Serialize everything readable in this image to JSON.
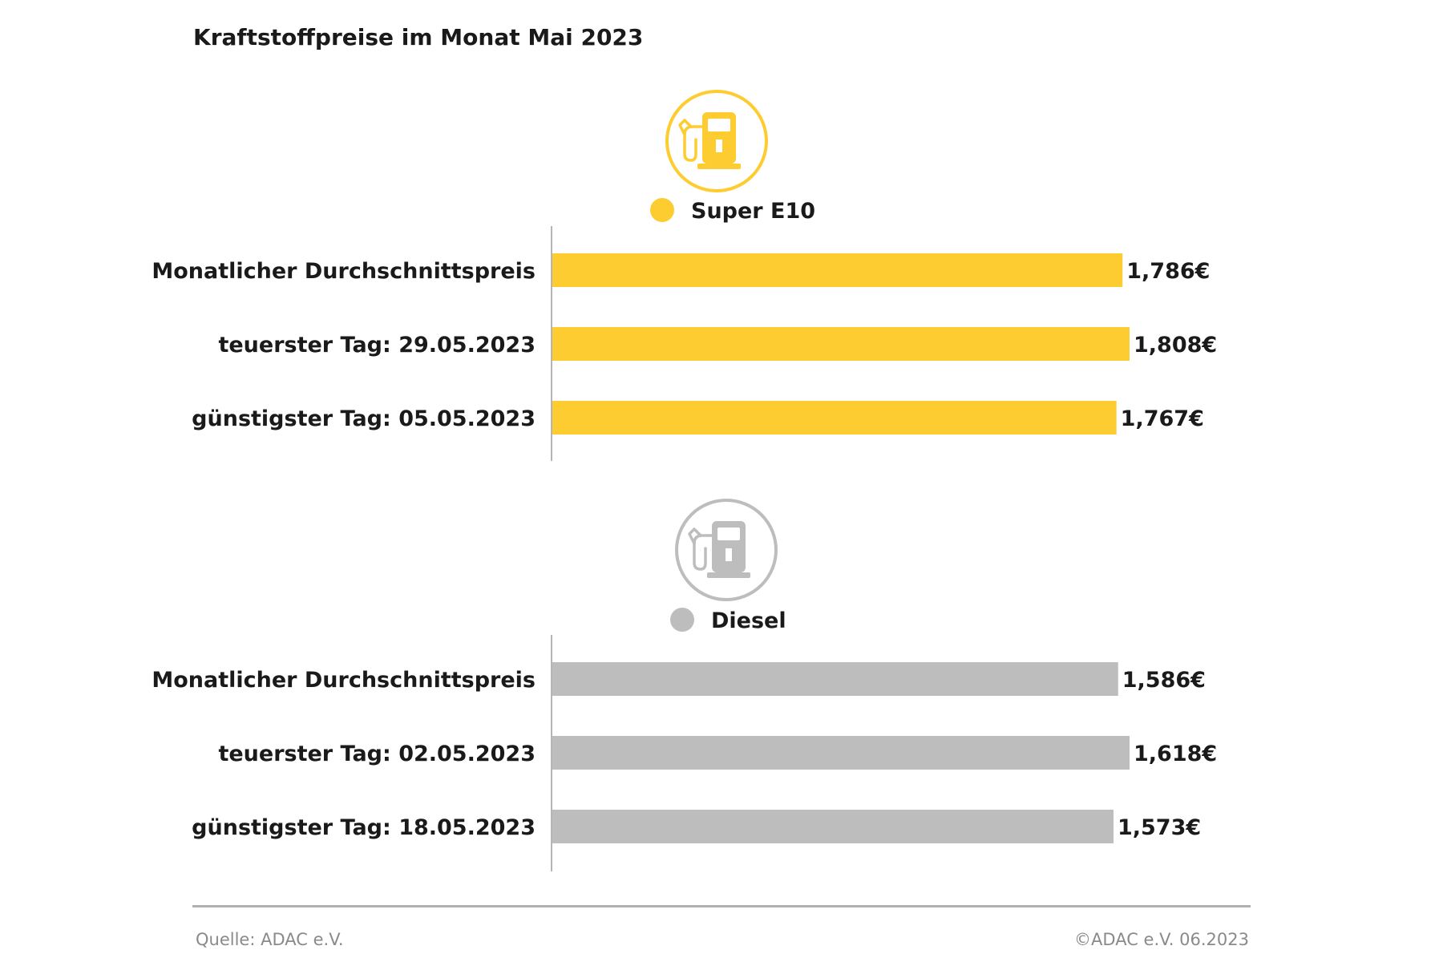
{
  "title": "Kraftstoffpreise im Monat Mai 2023",
  "footer": {
    "source": "Quelle: ADAC e.V.",
    "copyright": "©ADAC e.V. 06.2023"
  },
  "colors": {
    "super_e10": "#fdcc30",
    "diesel": "#bdbdbd",
    "axis": "#b5b5b5",
    "text": "#1a1a1a"
  },
  "chart_data": [
    {
      "type": "bar",
      "orientation": "horizontal",
      "series_name": "Super E10",
      "icon": "fuel-pump-icon",
      "color": "#fdcc30",
      "categories": [
        "Monatlicher Durchschnittspreis",
        "teuerster Tag: 29.05.2023",
        "günstigster Tag: 05.05.2023"
      ],
      "values": [
        1.786,
        1.808,
        1.767
      ],
      "value_labels": [
        "1,786€",
        "1,808€",
        "1,767€"
      ],
      "xlim": [
        0,
        1.808
      ]
    },
    {
      "type": "bar",
      "orientation": "horizontal",
      "series_name": "Diesel",
      "icon": "fuel-pump-icon",
      "color": "#bdbdbd",
      "categories": [
        "Monatlicher Durchschnittspreis",
        "teuerster Tag: 02.05.2023",
        "günstigster Tag: 18.05.2023"
      ],
      "values": [
        1.586,
        1.618,
        1.573
      ],
      "value_labels": [
        "1,586€",
        "1,618€",
        "1,573€"
      ],
      "xlim": [
        0,
        1.618
      ]
    }
  ]
}
